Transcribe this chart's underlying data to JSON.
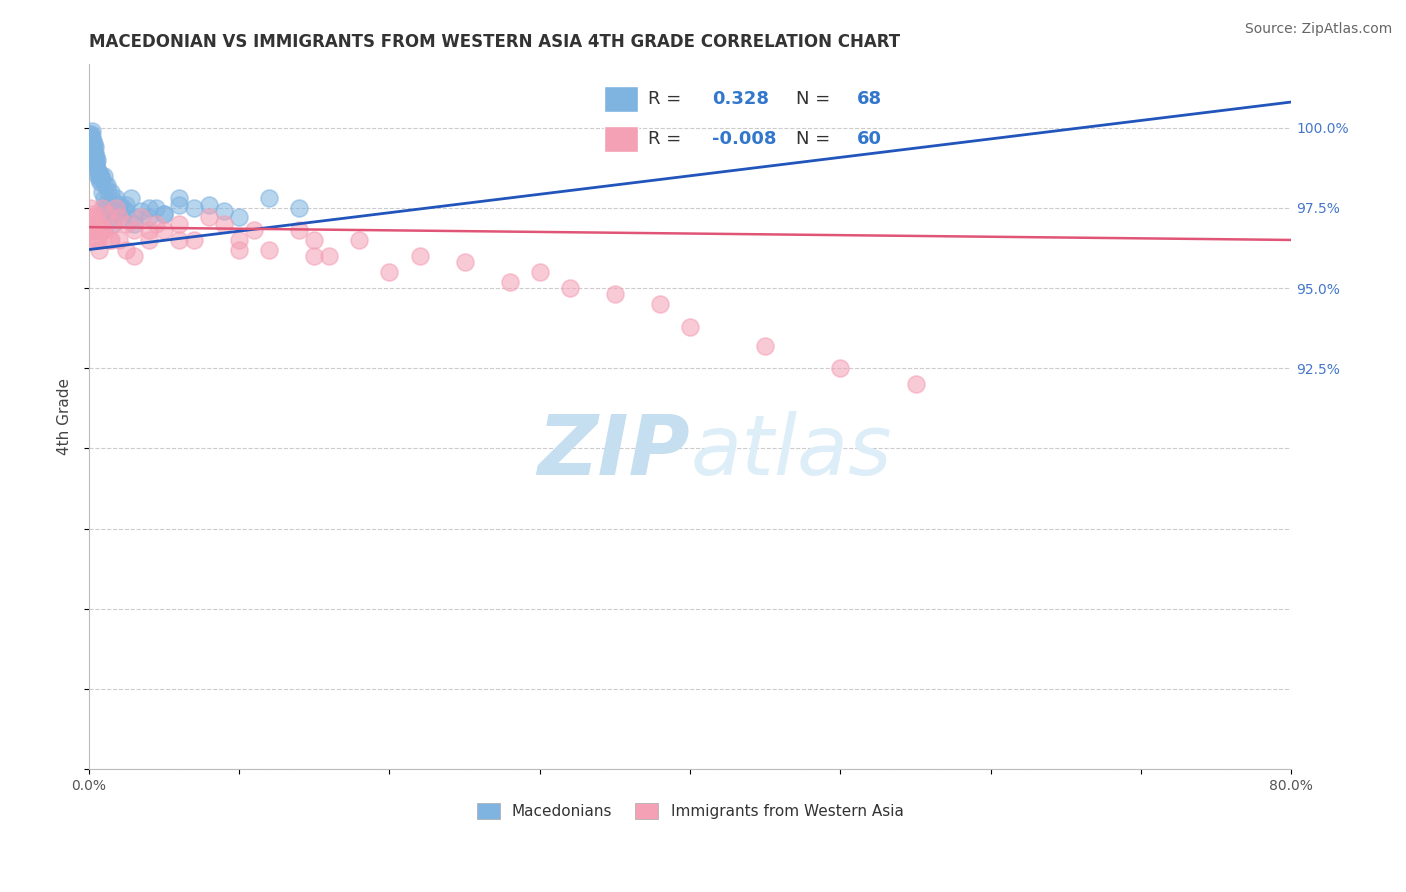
{
  "title": "MACEDONIAN VS IMMIGRANTS FROM WESTERN ASIA 4TH GRADE CORRELATION CHART",
  "source": "Source: ZipAtlas.com",
  "ylabel": "4th Grade",
  "xlim": [
    0.0,
    80.0
  ],
  "ylim": [
    80.0,
    102.0
  ],
  "blue_R": 0.328,
  "blue_N": 68,
  "pink_R": -0.008,
  "pink_N": 60,
  "blue_color": "#7fb3e0",
  "pink_color": "#f4a0b5",
  "blue_line_color": "#2255bb",
  "pink_line_color": "#e05575",
  "watermark_color": "#cce4f5",
  "background_color": "#ffffff",
  "blue_scatter_x": [
    0.05,
    0.08,
    0.1,
    0.12,
    0.15,
    0.18,
    0.2,
    0.22,
    0.25,
    0.28,
    0.3,
    0.32,
    0.35,
    0.38,
    0.4,
    0.42,
    0.45,
    0.48,
    0.5,
    0.52,
    0.55,
    0.6,
    0.65,
    0.7,
    0.75,
    0.8,
    0.9,
    1.0,
    1.1,
    1.2,
    1.4,
    1.5,
    1.6,
    1.8,
    2.0,
    2.2,
    2.5,
    2.8,
    3.0,
    3.5,
    4.0,
    4.5,
    5.0,
    6.0,
    7.0,
    8.0,
    9.0,
    10.0,
    12.0,
    14.0,
    1.0,
    1.2,
    1.5,
    1.8,
    2.0,
    2.5,
    3.0,
    4.0,
    5.0,
    6.0,
    0.3,
    0.5,
    0.7,
    0.9,
    1.1,
    1.3,
    1.7,
    2.3
  ],
  "blue_scatter_y": [
    99.8,
    99.5,
    99.7,
    99.6,
    99.8,
    99.9,
    99.5,
    99.7,
    99.6,
    99.4,
    99.3,
    99.5,
    99.2,
    99.4,
    99.0,
    99.2,
    99.1,
    98.9,
    98.8,
    99.0,
    98.7,
    98.5,
    98.6,
    98.4,
    98.3,
    98.5,
    98.0,
    97.8,
    97.6,
    97.5,
    97.2,
    97.4,
    97.0,
    97.3,
    97.5,
    97.2,
    97.6,
    97.8,
    97.0,
    97.4,
    97.2,
    97.5,
    97.3,
    97.8,
    97.5,
    97.6,
    97.4,
    97.2,
    97.8,
    97.5,
    98.5,
    98.2,
    98.0,
    97.8,
    97.6,
    97.4,
    97.2,
    97.5,
    97.3,
    97.6,
    99.1,
    98.8,
    98.6,
    98.4,
    98.2,
    98.0,
    97.7,
    97.5
  ],
  "pink_scatter_x": [
    0.05,
    0.1,
    0.15,
    0.2,
    0.25,
    0.3,
    0.35,
    0.4,
    0.5,
    0.6,
    0.7,
    0.8,
    0.9,
    1.0,
    1.2,
    1.4,
    1.6,
    1.8,
    2.0,
    2.5,
    3.0,
    3.5,
    4.0,
    4.5,
    5.0,
    6.0,
    7.0,
    8.0,
    9.0,
    10.0,
    11.0,
    12.0,
    14.0,
    15.0,
    16.0,
    18.0,
    20.0,
    22.0,
    25.0,
    28.0,
    30.0,
    32.0,
    35.0,
    38.0,
    40.0,
    45.0,
    50.0,
    55.0,
    2.0,
    3.0,
    0.3,
    0.5,
    0.7,
    1.0,
    1.5,
    2.5,
    4.0,
    6.0,
    10.0,
    15.0
  ],
  "pink_scatter_y": [
    97.2,
    97.5,
    97.0,
    96.8,
    97.3,
    96.5,
    97.0,
    96.8,
    97.2,
    96.5,
    97.0,
    96.8,
    97.5,
    96.8,
    97.3,
    96.5,
    97.0,
    97.5,
    97.2,
    97.0,
    96.8,
    97.2,
    96.5,
    97.0,
    96.8,
    97.0,
    96.5,
    97.2,
    97.0,
    96.5,
    96.8,
    96.2,
    96.8,
    96.5,
    96.0,
    96.5,
    95.5,
    96.0,
    95.8,
    95.2,
    95.5,
    95.0,
    94.8,
    94.5,
    93.8,
    93.2,
    92.5,
    92.0,
    96.5,
    96.0,
    96.8,
    96.5,
    96.2,
    96.8,
    96.5,
    96.2,
    96.8,
    96.5,
    96.2,
    96.0
  ],
  "title_fontsize": 12,
  "source_fontsize": 10,
  "axis_label_fontsize": 11,
  "tick_fontsize": 10,
  "legend_fontsize": 14,
  "watermark_fontsize": 60
}
